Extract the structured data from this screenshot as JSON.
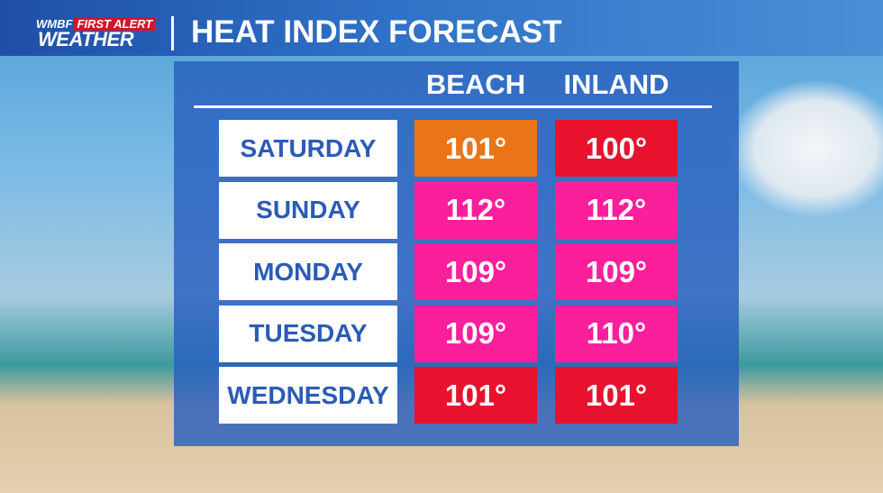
{
  "header": {
    "logo_brand": "WMBF",
    "logo_tag": "FIRST ALERT",
    "logo_name": "WEATHER",
    "title": "HEAT INDEX FORECAST"
  },
  "table": {
    "columns": [
      "BEACH",
      "INLAND"
    ],
    "rows": [
      {
        "day": "SATURDAY",
        "cells": [
          {
            "text": "101°",
            "color": "#ea7418"
          },
          {
            "text": "100°",
            "color": "#e8122e"
          }
        ]
      },
      {
        "day": "SUNDAY",
        "cells": [
          {
            "text": "112°",
            "color": "#fc1f9b"
          },
          {
            "text": "112°",
            "color": "#fc1f9b"
          }
        ]
      },
      {
        "day": "MONDAY",
        "cells": [
          {
            "text": "109°",
            "color": "#fc1f9b"
          },
          {
            "text": "109°",
            "color": "#fc1f9b"
          }
        ]
      },
      {
        "day": "TUESDAY",
        "cells": [
          {
            "text": "109°",
            "color": "#fc1f9b"
          },
          {
            "text": "110°",
            "color": "#fc1f9b"
          }
        ]
      },
      {
        "day": "WEDNESDAY",
        "cells": [
          {
            "text": "101°",
            "color": "#e8122e"
          },
          {
            "text": "101°",
            "color": "#e8122e"
          }
        ]
      }
    ]
  }
}
